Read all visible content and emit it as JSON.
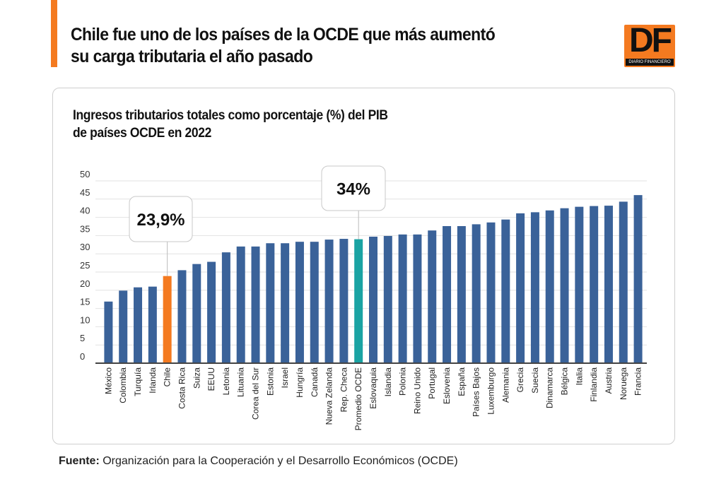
{
  "header": {
    "title_line1": "Chile fue uno de los países de la OCDE que más aumentó",
    "title_line2": "su carga tributaria el año pasado"
  },
  "logo": {
    "text": "DF",
    "subtext": "DIARIO FINANCIERO"
  },
  "footer": {
    "label": "Fuente:",
    "text": " Organización para la Cooperación y el Desarrollo Económicos (OCDE)"
  },
  "colors": {
    "bar": "#3a6299",
    "highlight_chile": "#f47a20",
    "highlight_average": "#1aa3a3",
    "accent": "#f47a20"
  },
  "chart_data": {
    "type": "bar",
    "title_line1": "Ingresos tributarios totales como porcentaje (%) del PIB",
    "title_line2": "de países OCDE en 2022",
    "ylim": [
      0,
      50
    ],
    "yticks": [
      0,
      5,
      10,
      15,
      20,
      25,
      30,
      35,
      40,
      45,
      50
    ],
    "grid": true,
    "categories": [
      "México",
      "Colombia",
      "Turquía",
      "Irlanda",
      "Chile",
      "Costa Rica",
      "Suiza",
      "EEUU",
      "Letonia",
      "Lituania",
      "Corea del Sur",
      "Estonia",
      "Israel",
      "Hungría",
      "Canadá",
      "Nueva Zelanda",
      "Rep. Checa",
      "Promedio OCDE",
      "Eslovaquia",
      "Islandia",
      "Polonia",
      "Reino Unido",
      "Portugal",
      "Eslovenia",
      "España",
      "Países Bajos",
      "Luxemburgo",
      "Alemania",
      "Grecia",
      "Suecia",
      "Dinamarca",
      "Bélgica",
      "Italia",
      "Finlandia",
      "Austria",
      "Noruega",
      "Francia"
    ],
    "values": [
      16.9,
      19.9,
      20.8,
      21.0,
      23.9,
      25.5,
      27.2,
      27.8,
      30.4,
      32.0,
      32.0,
      32.9,
      32.9,
      33.3,
      33.3,
      33.9,
      34.1,
      34.0,
      34.7,
      34.9,
      35.3,
      35.3,
      36.4,
      37.6,
      37.6,
      38.1,
      38.6,
      39.4,
      41.1,
      41.4,
      41.9,
      42.5,
      42.9,
      43.1,
      43.2,
      44.3,
      46.1
    ],
    "annotations": [
      {
        "category": "Chile",
        "text": "23,9%"
      },
      {
        "category": "Promedio OCDE",
        "text": "34%"
      }
    ]
  }
}
